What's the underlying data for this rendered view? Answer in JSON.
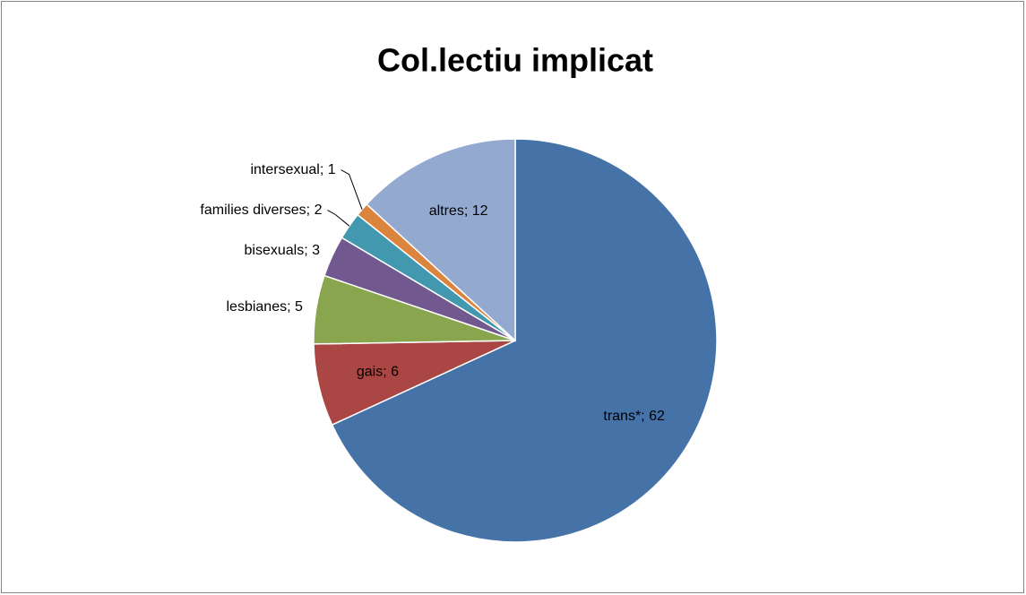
{
  "chart_data": {
    "type": "pie",
    "title": "Col.lectiu implicat",
    "values": [
      62,
      6,
      5,
      3,
      2,
      1,
      12
    ],
    "value_labels": [
      "trans*; 62",
      "gais; 6",
      "lesbianes; 5",
      "bisexuals; 3",
      "families diverses; 2",
      "intersexual; 1",
      "altres; 12"
    ],
    "colors": [
      "#4572a7",
      "#aa4643",
      "#89a54e",
      "#71588f",
      "#4198af",
      "#db843d",
      "#93a9cf"
    ]
  }
}
